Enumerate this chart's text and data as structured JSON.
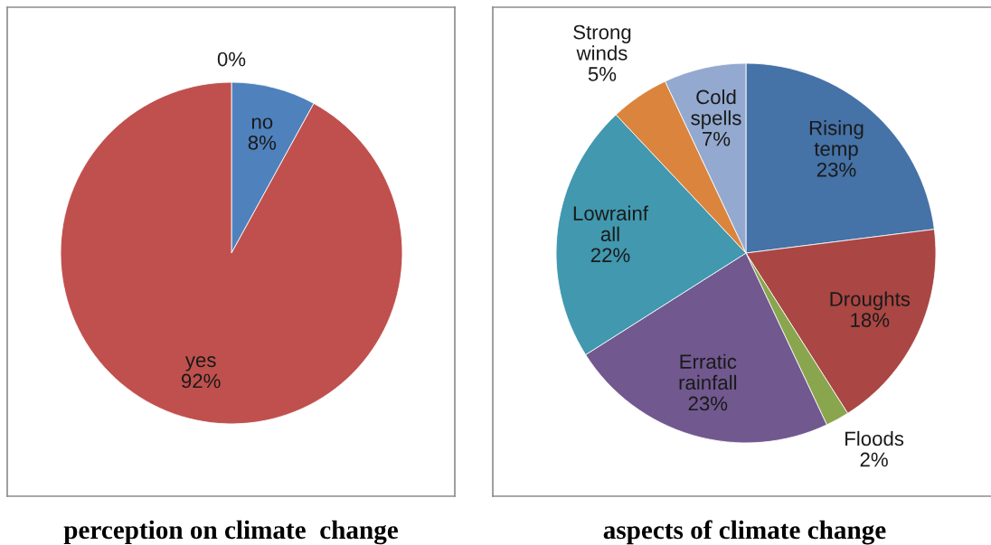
{
  "chart_data": [
    {
      "type": "pie",
      "title": "perception on climate  change",
      "categories": [
        "no",
        "yes",
        null
      ],
      "values": [
        8,
        92,
        0
      ],
      "value_labels": [
        "8%",
        "92%",
        "0%"
      ],
      "colors": [
        "#4f81bd",
        "#c0504d",
        "#9bbb59"
      ]
    },
    {
      "type": "pie",
      "title": "aspects of climate change",
      "categories": [
        "Rising temp",
        "Droughts",
        "Floods",
        "Erratic rainfall",
        "Lowrainf all",
        "Strong winds",
        "Cold spells"
      ],
      "values": [
        23,
        18,
        2,
        23,
        22,
        5,
        7
      ],
      "value_labels": [
        "23%",
        "18%",
        "2%",
        "23%",
        "22%",
        "5%",
        "7%"
      ],
      "colors": [
        "#4572a7",
        "#aa4643",
        "#89a54e",
        "#71588f",
        "#4198af",
        "#db843d",
        "#93a9cf"
      ]
    }
  ]
}
